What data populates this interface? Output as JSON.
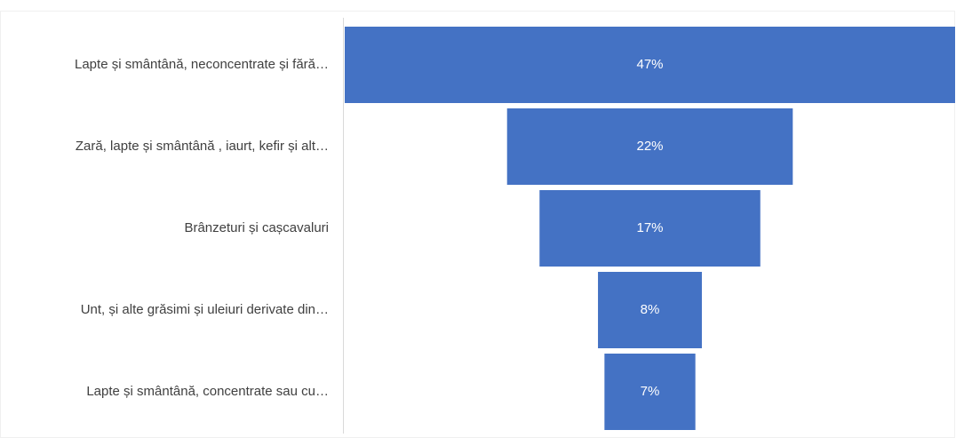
{
  "chart_data": {
    "type": "funnel",
    "categories": [
      "Lapte și smântână, neconcentrate și fără…",
      "Zară, lapte și smântână , iaurt, kefir și alt…",
      "Brânzeturi și cașcavaluri",
      "Unt, și alte grăsimi și uleiuri derivate din…",
      "Lapte și smântână, concentrate sau cu…"
    ],
    "values": [
      47,
      22,
      17,
      8,
      7
    ],
    "value_labels": [
      "47%",
      "22%",
      "17%",
      "8%",
      "7%"
    ],
    "color": "#4472c4"
  }
}
